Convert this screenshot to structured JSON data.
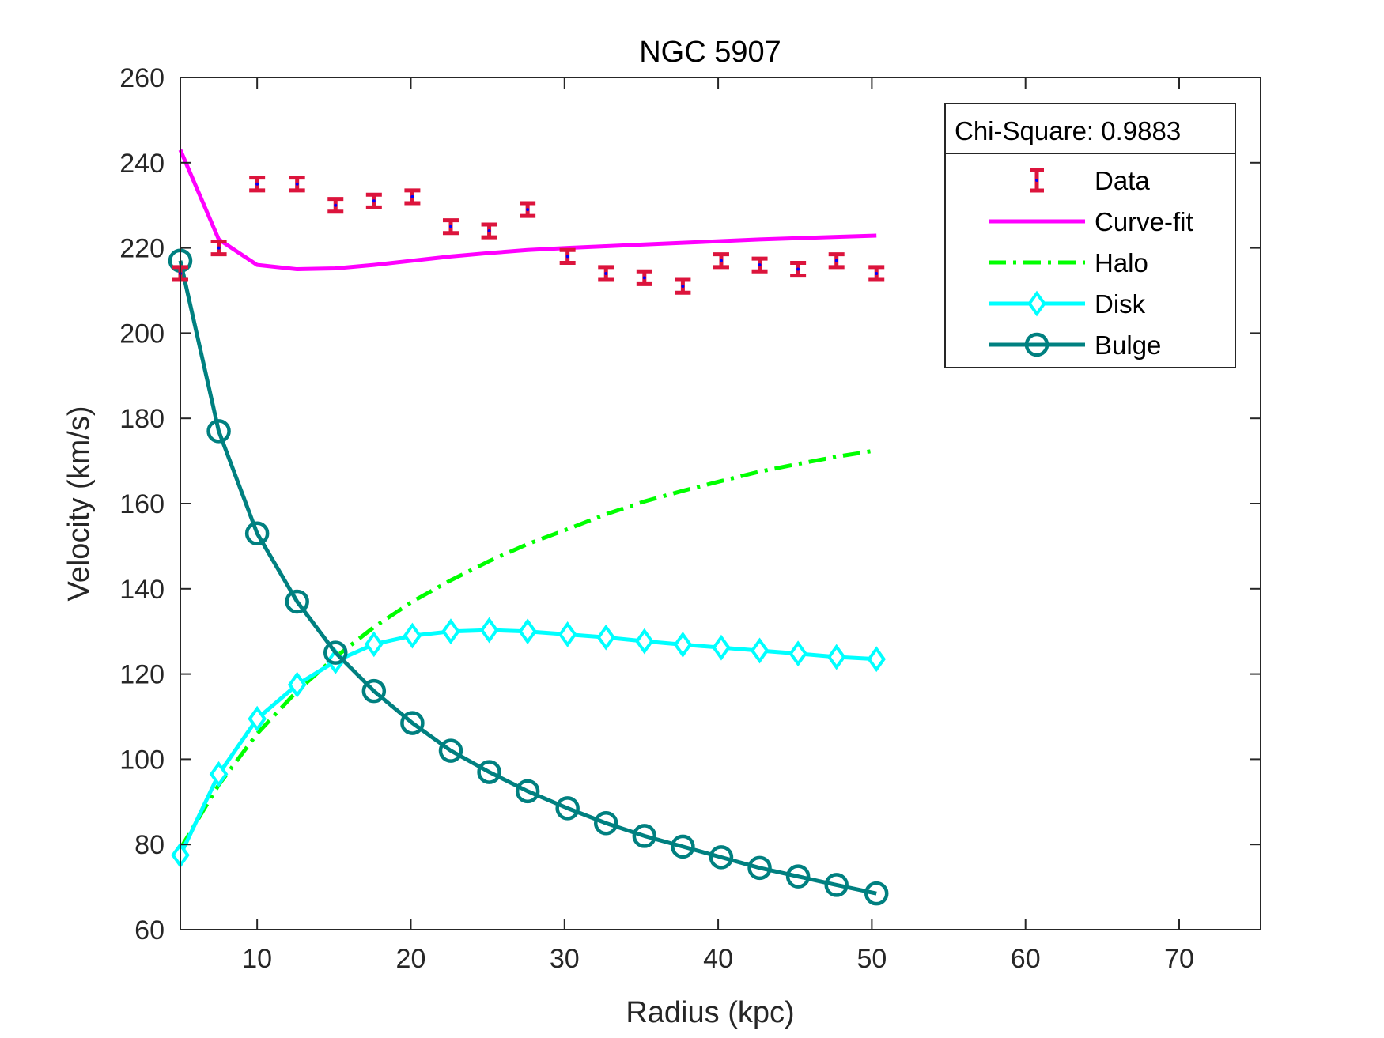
{
  "chart_data": {
    "type": "line",
    "title": "NGC 5907",
    "xlabel": "Radius (kpc)",
    "ylabel": "Velocity (km/s)",
    "xlim": [
      5,
      75.3
    ],
    "ylim": [
      60,
      260
    ],
    "xticks": [
      10,
      20,
      30,
      40,
      50,
      60,
      70
    ],
    "yticks": [
      60,
      80,
      100,
      120,
      140,
      160,
      180,
      200,
      220,
      240,
      260
    ],
    "grid": false,
    "legend": {
      "placement": "top-right",
      "header": "Chi-Square: 0.9883",
      "entries": [
        "Data",
        "Curve-fit",
        "Halo",
        "Disk",
        "Bulge"
      ]
    },
    "x": [
      5.0,
      7.5,
      10.0,
      12.6,
      15.1,
      17.6,
      20.1,
      22.6,
      25.1,
      27.6,
      30.2,
      32.7,
      35.2,
      37.7,
      40.2,
      42.7,
      45.2,
      47.7,
      50.3
    ],
    "series": [
      {
        "name": "Data",
        "style": "errorbar",
        "color": "#dc143c",
        "values": [
          214,
          220,
          235,
          235,
          230,
          231,
          232,
          225,
          224,
          229,
          218,
          214,
          213,
          211,
          217,
          216,
          215,
          217,
          214
        ],
        "error": [
          1.5,
          1.5,
          1.5,
          1.5,
          1.5,
          1.5,
          1.5,
          1.5,
          1.5,
          1.5,
          1.5,
          1.5,
          1.5,
          1.5,
          1.5,
          1.5,
          1.5,
          1.5,
          1.5
        ]
      },
      {
        "name": "Curve-fit",
        "style": "solid",
        "color": "#ff00ff",
        "values": [
          243,
          222,
          216,
          215,
          215.2,
          216,
          217,
          218,
          218.8,
          219.5,
          220,
          220.4,
          220.8,
          221.2,
          221.6,
          222,
          222.3,
          222.6,
          222.9
        ]
      },
      {
        "name": "Halo",
        "style": "dashdot",
        "color": "#00ff00",
        "values": [
          79,
          94,
          106,
          116,
          124,
          131,
          137,
          142,
          146.5,
          150.5,
          154,
          157.5,
          160.5,
          163,
          165.3,
          167.5,
          169.3,
          171,
          172.5
        ]
      },
      {
        "name": "Disk",
        "style": "solid-diamond",
        "color": "#00ffff",
        "values": [
          77.5,
          96.5,
          109.5,
          117.5,
          123,
          127,
          129,
          130,
          130.3,
          130,
          129.3,
          128.6,
          127.7,
          126.9,
          126.2,
          125.5,
          124.8,
          124,
          123.5
        ]
      },
      {
        "name": "Bulge",
        "style": "solid-circle",
        "color": "#008080",
        "values": [
          217,
          177,
          153,
          137,
          125,
          116,
          108.5,
          102,
          97,
          92.5,
          88.5,
          85,
          82,
          79.5,
          77,
          74.5,
          72.5,
          70.5,
          68.5
        ]
      }
    ]
  }
}
